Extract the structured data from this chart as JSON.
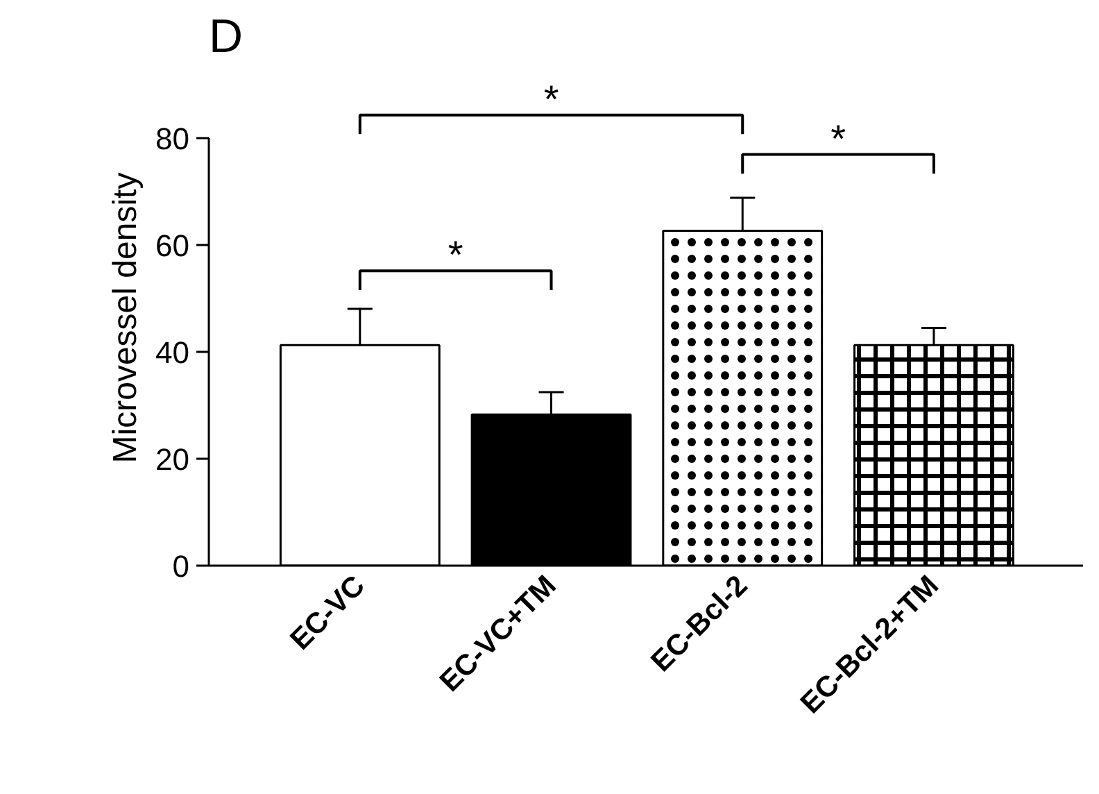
{
  "chart_data": {
    "type": "bar",
    "title": "D",
    "ylabel": "Microvessel density",
    "categories": [
      "EC-VC",
      "EC-VC+TM",
      "EC-Bcl-2",
      "EC-Bcl-2+TM"
    ],
    "values": [
      41.3,
      28.3,
      62.7,
      41.3
    ],
    "errors": [
      [
        41.3,
        48.1
      ],
      [
        28.3,
        32.5
      ],
      [
        62.7,
        68.9
      ],
      [
        41.3,
        44.5
      ]
    ],
    "colors": [
      "#ffffff",
      "#000000",
      "#ffffff",
      "#ffffff"
    ],
    "ylim": [
      0,
      80
    ],
    "yticks": [
      0,
      20,
      40,
      60,
      80
    ],
    "grid": false,
    "annotations": [
      "*",
      "*",
      "*"
    ]
  }
}
